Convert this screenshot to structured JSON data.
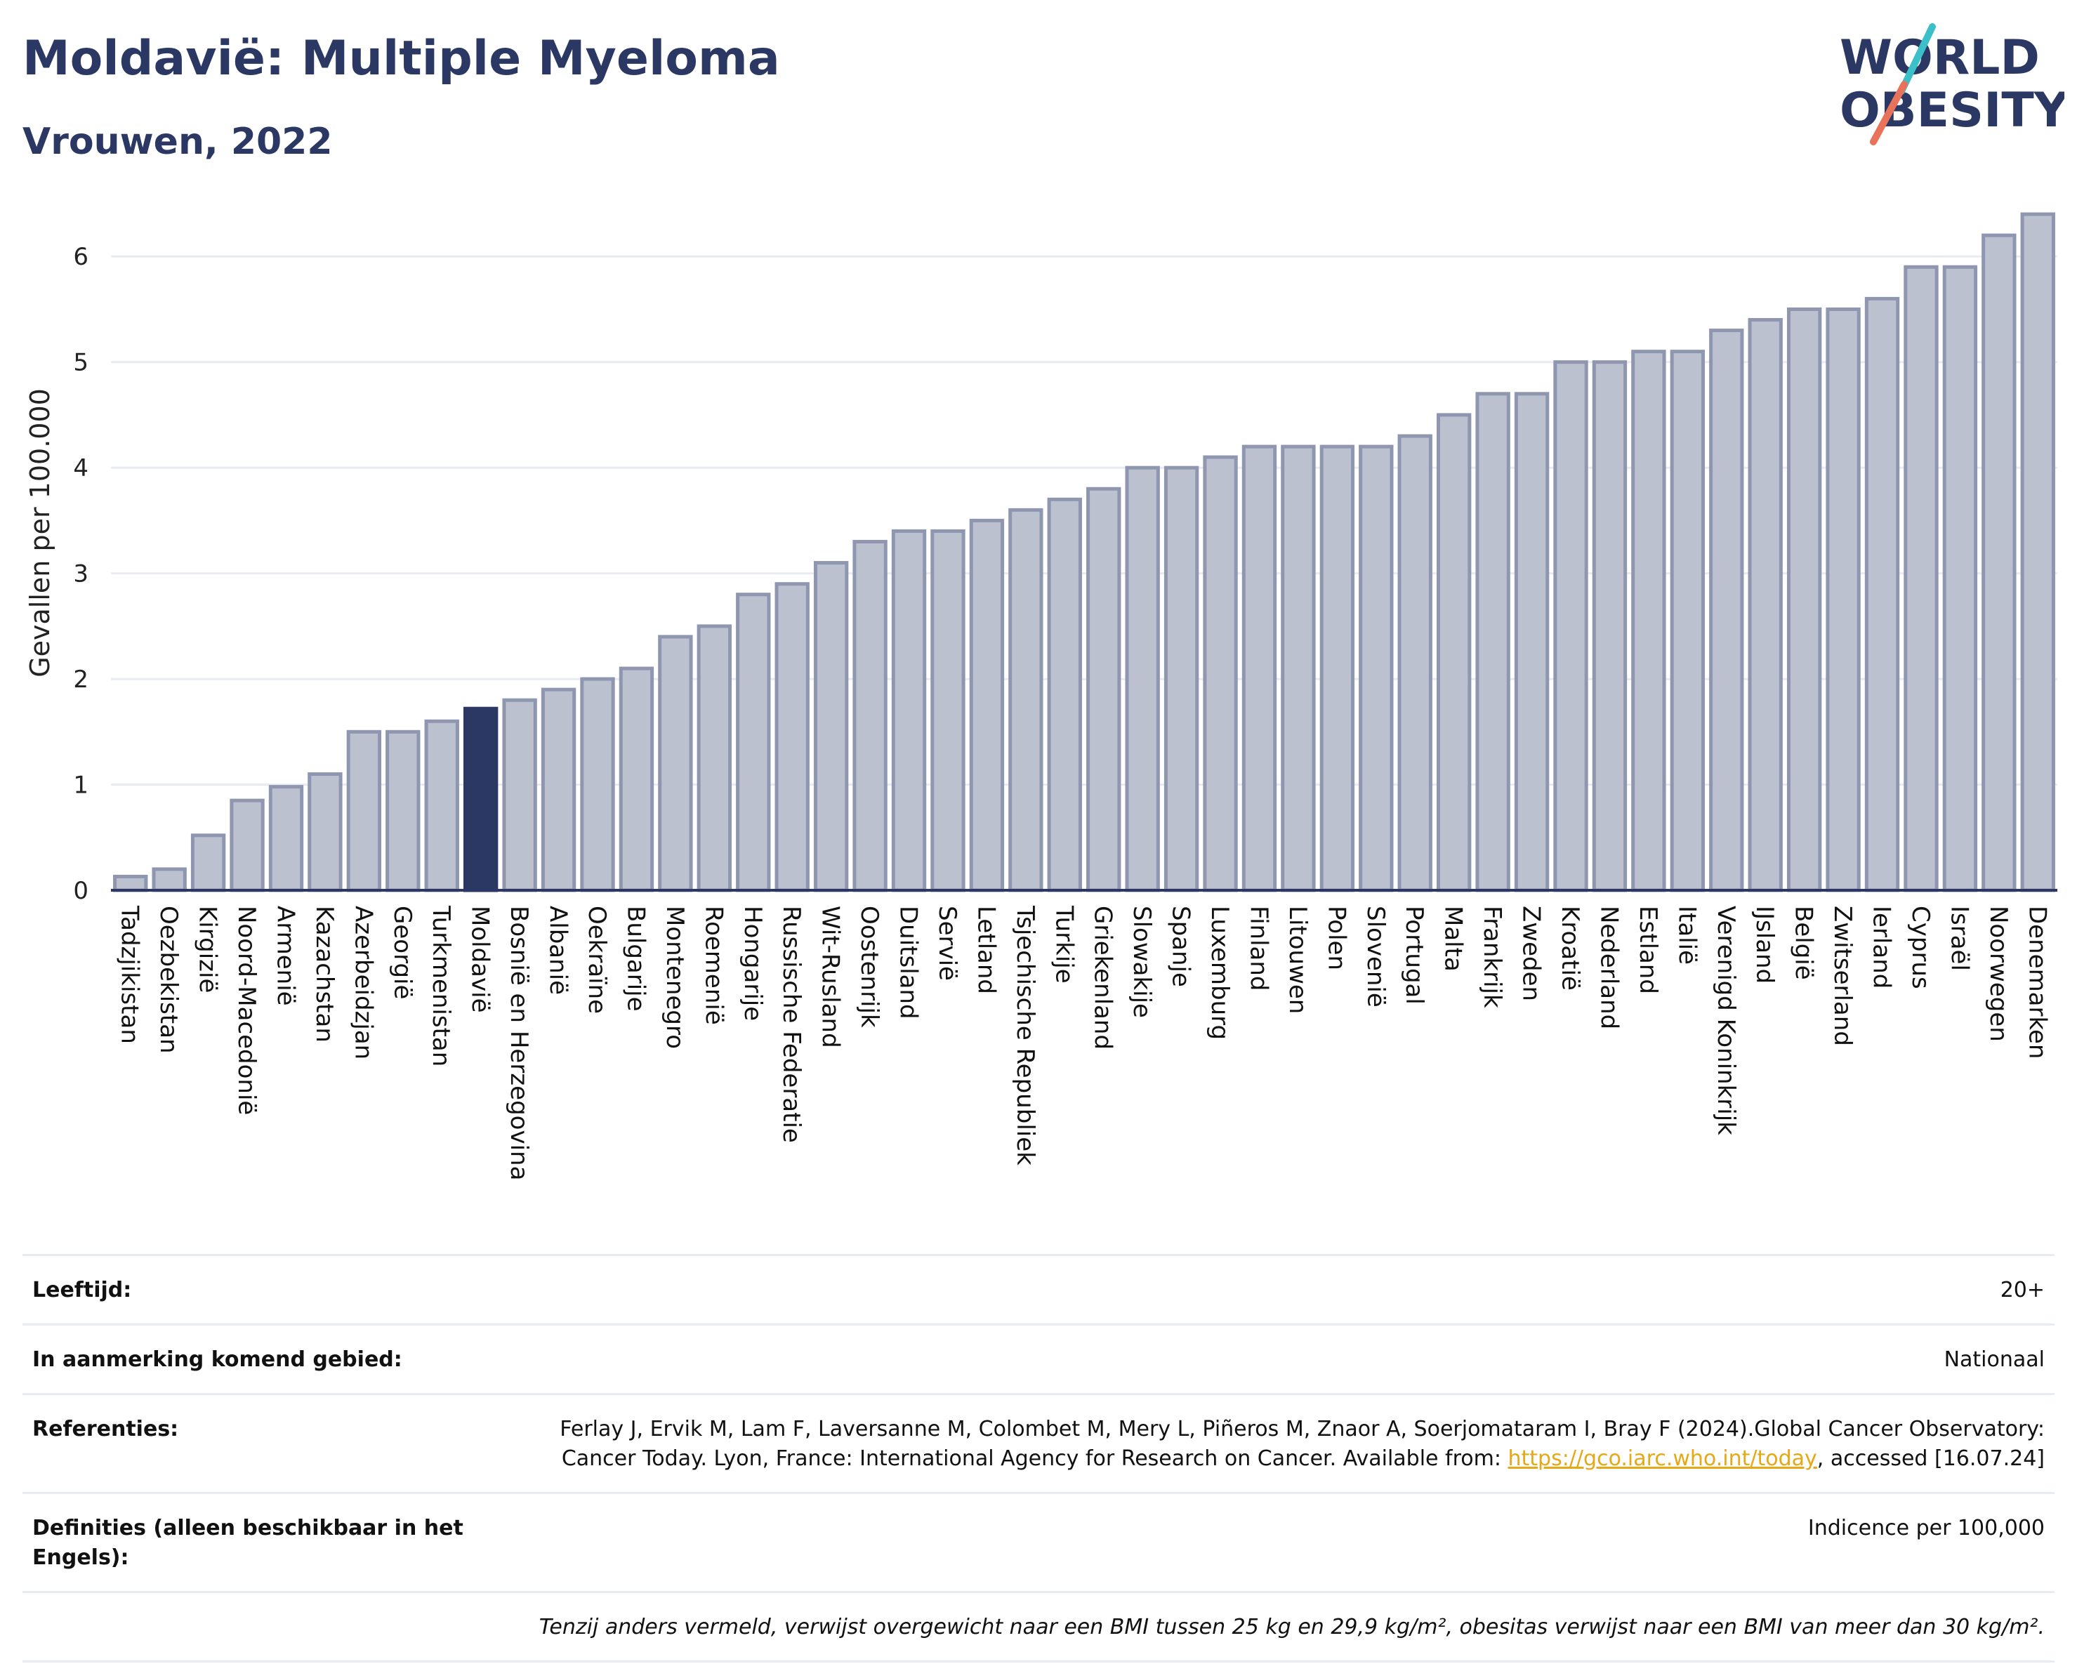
{
  "header": {
    "title": "Moldavië: Multiple Myeloma",
    "subtitle": "Vrouwen, 2022"
  },
  "logo": {
    "line1": "WORLD",
    "line2": "OBESITY",
    "accent_color": "#e8735a",
    "accent2_color": "#3cc0c8"
  },
  "colors": {
    "bar": "#bcc1cf",
    "bar_stroke": "#8e96b0",
    "highlight": "#2a3863",
    "text": "#2a3863"
  },
  "chart_data": {
    "type": "bar",
    "ylabel": "Gevallen per 100.000",
    "ylim": [
      0,
      6.5
    ],
    "yticks": [
      0,
      1,
      2,
      3,
      4,
      5,
      6
    ],
    "grid": true,
    "highlight": "Moldavië",
    "categories": [
      "Tadzjikistan",
      "Oezbekistan",
      "Kirgizië",
      "Noord-Macedonië",
      "Armenië",
      "Kazachstan",
      "Azerbeidzjan",
      "Georgië",
      "Turkmenistan",
      "Moldavië",
      "Bosnië en Herzegovina",
      "Albanië",
      "Oekraïne",
      "Bulgarije",
      "Montenegro",
      "Roemenië",
      "Hongarije",
      "Russische Federatie",
      "Wit-Rusland",
      "Oostenrijk",
      "Duitsland",
      "Servië",
      "Letland",
      "Tsjechische Republiek",
      "Turkije",
      "Griekenland",
      "Slowakije",
      "Spanje",
      "Luxemburg",
      "Finland",
      "Litouwen",
      "Polen",
      "Slovenië",
      "Portugal",
      "Malta",
      "Frankrijk",
      "Zweden",
      "Kroatië",
      "Nederland",
      "Estland",
      "Italië",
      "Verenigd Koninkrijk",
      "IJsland",
      "België",
      "Zwitserland",
      "Ierland",
      "Cyprus",
      "Israël",
      "Noorwegen",
      "Denemarken"
    ],
    "values": [
      0.13,
      0.2,
      0.52,
      0.85,
      0.98,
      1.1,
      1.5,
      1.5,
      1.6,
      1.72,
      1.8,
      1.9,
      2.0,
      2.1,
      2.4,
      2.5,
      2.8,
      2.9,
      3.1,
      3.3,
      3.4,
      3.4,
      3.5,
      3.6,
      3.7,
      3.8,
      4.0,
      4.0,
      4.1,
      4.2,
      4.2,
      4.2,
      4.2,
      4.3,
      4.5,
      4.7,
      4.7,
      5.0,
      5.0,
      5.1,
      5.1,
      5.3,
      5.4,
      5.5,
      5.5,
      5.6,
      5.9,
      5.9,
      6.2,
      6.4
    ]
  },
  "meta": {
    "age_label": "Leeftijd:",
    "age_value": "20+",
    "area_label": "In aanmerking komend gebied:",
    "area_value": "Nationaal",
    "ref_label": "Referenties:",
    "ref_text": "Ferlay J, Ervik M, Lam F, Laversanne M, Colombet M, Mery L, Piñeros M, Znaor A, Soerjomataram I, Bray F (2024).Global Cancer Observatory: Cancer Today. Lyon, France: International Agency for Research on Cancer. Available from: ",
    "ref_link": "https://gco.iarc.who.int/today",
    "ref_tail": ", accessed [16.07.24]",
    "def_label": "Definities (alleen beschikbaar in het Engels):",
    "def_value": "Indicence per 100,000",
    "note": "Tenzij anders vermeld, verwijst overgewicht naar een BMI tussen 25 kg en 29,9 kg/m², obesitas verwijst naar een BMI van meer dan 30 kg/m²."
  }
}
